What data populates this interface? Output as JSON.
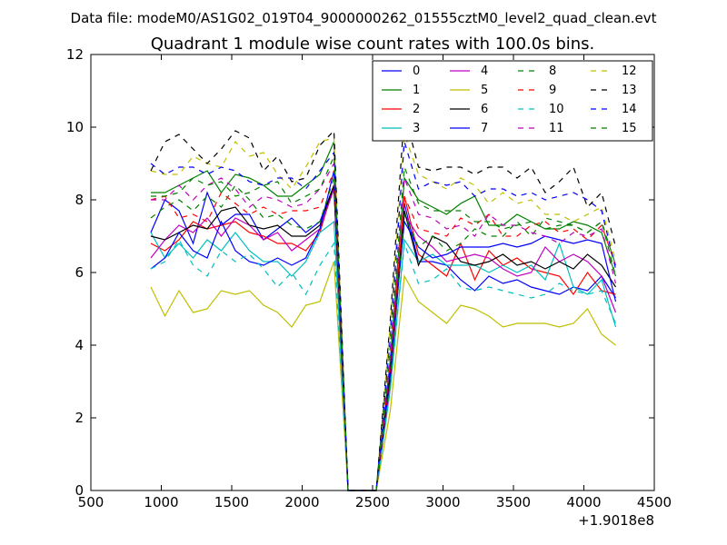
{
  "chart_data": {
    "type": "line",
    "suptitle": "Data file: modeM0/AS1G02_019T04_9000000262_01555cztM0_level2_quad_clean.evt",
    "title": "Quadrant 1 module wise count rates with 100.0s bins.",
    "xlabel": "",
    "ylabel": "",
    "x_offset_label": "+1.9018e8",
    "xlim": [
      500,
      4500
    ],
    "ylim": [
      0,
      12
    ],
    "xticks": [
      500,
      1000,
      1500,
      2000,
      2500,
      3000,
      3500,
      4000,
      4500
    ],
    "yticks": [
      0,
      2,
      4,
      6,
      8,
      10,
      12
    ],
    "grid": false,
    "legend_position": "top-right",
    "x": [
      926,
      1026,
      1126,
      1226,
      1326,
      1426,
      1526,
      1626,
      1726,
      1826,
      1926,
      2026,
      2126,
      2226,
      2326,
      2426,
      2526,
      2626,
      2726,
      2826,
      2926,
      3026,
      3126,
      3226,
      3326,
      3426,
      3526,
      3626,
      3726,
      3826,
      3926,
      4026,
      4126,
      4226
    ],
    "series": [
      {
        "name": "0",
        "color": "#0000ff",
        "dash": false,
        "values": [
          7.1,
          8.0,
          7.7,
          6.8,
          8.2,
          7.3,
          7.6,
          7.6,
          6.9,
          7.2,
          7.5,
          7.1,
          7.4,
          8.4,
          0,
          0,
          0,
          3.2,
          7.9,
          6.3,
          6.3,
          6.2,
          5.8,
          5.5,
          5.9,
          5.7,
          5.8,
          5.6,
          5.5,
          5.4,
          5.6,
          5.5,
          5.9,
          5.3
        ]
      },
      {
        "name": "1",
        "color": "#008000",
        "dash": false,
        "values": [
          8.2,
          8.2,
          8.4,
          8.6,
          8.8,
          8.2,
          8.7,
          8.6,
          8.4,
          8.1,
          8.1,
          8.4,
          8.7,
          9.6,
          0,
          0,
          0,
          3.6,
          8.6,
          8.0,
          7.8,
          7.6,
          7.9,
          8.1,
          7.3,
          7.3,
          7.6,
          7.4,
          7.2,
          7.2,
          7.4,
          7.3,
          7.1,
          5.9
        ]
      },
      {
        "name": "2",
        "color": "#ff0000",
        "dash": false,
        "values": [
          6.8,
          6.6,
          6.9,
          7.4,
          7.2,
          7.3,
          7.4,
          7.1,
          7.0,
          6.8,
          6.8,
          6.6,
          7.1,
          8.4,
          0,
          0,
          0,
          3.3,
          8.1,
          6.5,
          6.2,
          5.9,
          6.8,
          5.8,
          6.6,
          6.2,
          6.4,
          6.1,
          6.0,
          5.9,
          5.4,
          6.0,
          5.5,
          5.4
        ]
      },
      {
        "name": "3",
        "color": "#00bfbf",
        "dash": false,
        "values": [
          7.1,
          6.4,
          6.8,
          6.4,
          6.9,
          6.6,
          7.1,
          6.6,
          6.3,
          6.3,
          5.9,
          6.3,
          7.1,
          7.4,
          0,
          0,
          0,
          2.8,
          6.9,
          6.3,
          6.5,
          6.2,
          6.2,
          6.2,
          6.0,
          6.2,
          6.0,
          6.2,
          5.8,
          6.8,
          5.6,
          5.4,
          5.8,
          4.5
        ]
      },
      {
        "name": "4",
        "color": "#bf00bf",
        "dash": false,
        "values": [
          6.4,
          6.9,
          7.3,
          7.1,
          7.5,
          7.0,
          7.5,
          7.3,
          6.9,
          7.1,
          6.6,
          6.9,
          7.2,
          8.3,
          0,
          0,
          0,
          3.0,
          7.6,
          7.0,
          6.7,
          6.3,
          6.4,
          6.5,
          6.4,
          6.1,
          5.9,
          6.0,
          6.7,
          6.3,
          6.5,
          6.3,
          5.9,
          4.9
        ]
      },
      {
        "name": "5",
        "color": "#bfbf00",
        "dash": false,
        "values": [
          5.6,
          4.8,
          5.5,
          4.9,
          5.0,
          5.5,
          5.4,
          5.5,
          5.1,
          4.9,
          4.5,
          5.1,
          5.2,
          6.3,
          0,
          0,
          0,
          2.2,
          5.9,
          5.2,
          4.9,
          4.6,
          5.1,
          5.0,
          4.8,
          4.5,
          4.6,
          4.6,
          4.6,
          4.5,
          4.6,
          5.0,
          4.3,
          4.0
        ]
      },
      {
        "name": "6",
        "color": "#000000",
        "dash": false,
        "values": [
          7.0,
          6.9,
          7.1,
          7.3,
          7.2,
          7.7,
          7.8,
          7.3,
          7.2,
          7.3,
          7.0,
          7.0,
          7.3,
          8.4,
          0,
          0,
          0,
          3.2,
          7.7,
          6.2,
          7.0,
          6.8,
          6.3,
          6.2,
          6.3,
          6.5,
          6.2,
          6.3,
          6.1,
          6.3,
          6.1,
          6.5,
          6.2,
          5.6
        ]
      },
      {
        "name": "7",
        "color": "#0000ff",
        "dash": false,
        "values": [
          6.1,
          6.4,
          7.1,
          6.6,
          6.4,
          7.4,
          6.6,
          6.3,
          6.2,
          6.4,
          6.2,
          6.4,
          7.2,
          8.8,
          0,
          0,
          0,
          3.4,
          7.4,
          6.7,
          6.4,
          6.5,
          6.7,
          6.7,
          6.7,
          6.8,
          6.7,
          6.8,
          7.0,
          6.9,
          6.8,
          6.9,
          6.8,
          5.2
        ]
      },
      {
        "name": "8",
        "color": "#008000",
        "dash": true,
        "values": [
          7.5,
          7.8,
          8.0,
          7.7,
          8.1,
          7.8,
          8.4,
          8.0,
          7.5,
          7.6,
          7.3,
          7.2,
          7.4,
          8.6,
          0,
          0,
          0,
          3.0,
          7.6,
          6.7,
          7.0,
          6.6,
          6.8,
          7.2,
          7.0,
          7.0,
          7.4,
          7.0,
          7.5,
          7.4,
          7.3,
          7.1,
          7.4,
          6.2
        ]
      },
      {
        "name": "9",
        "color": "#ff0000",
        "dash": true,
        "values": [
          8.0,
          8.1,
          7.5,
          7.6,
          7.4,
          8.2,
          7.9,
          7.6,
          7.8,
          7.6,
          7.7,
          7.7,
          7.8,
          8.8,
          0,
          0,
          0,
          3.5,
          8.1,
          7.2,
          7.1,
          7.0,
          7.5,
          7.3,
          7.6,
          7.0,
          7.0,
          7.3,
          7.4,
          7.1,
          7.2,
          6.9,
          7.3,
          6.2
        ]
      },
      {
        "name": "10",
        "color": "#00bfbf",
        "dash": true,
        "values": [
          6.1,
          6.3,
          6.9,
          6.2,
          5.9,
          6.6,
          6.3,
          6.5,
          6.1,
          5.6,
          6.0,
          5.4,
          6.2,
          6.8,
          0,
          0,
          0,
          2.8,
          6.8,
          5.7,
          5.8,
          6.1,
          5.6,
          5.5,
          5.6,
          5.5,
          5.4,
          5.3,
          5.4,
          5.7,
          5.5,
          5.4,
          5.5,
          4.6
        ]
      },
      {
        "name": "11",
        "color": "#bf00bf",
        "dash": true,
        "values": [
          8.0,
          8.0,
          8.4,
          8.0,
          8.4,
          8.6,
          8.3,
          7.8,
          8.1,
          8.0,
          7.8,
          7.9,
          8.3,
          9.0,
          0,
          0,
          0,
          3.7,
          8.6,
          7.6,
          7.5,
          7.2,
          7.3,
          7.0,
          7.6,
          7.3,
          7.3,
          7.1,
          7.0,
          6.8,
          7.1,
          7.0,
          7.2,
          5.7
        ]
      },
      {
        "name": "12",
        "color": "#bfbf00",
        "dash": true,
        "values": [
          8.8,
          8.7,
          8.7,
          9.2,
          9.0,
          8.9,
          9.6,
          9.2,
          9.3,
          8.7,
          8.3,
          8.9,
          9.6,
          9.7,
          0,
          0,
          0,
          4.6,
          9.8,
          8.7,
          8.5,
          8.3,
          8.6,
          8.4,
          7.9,
          8.2,
          7.9,
          8.0,
          7.6,
          7.6,
          7.4,
          7.6,
          7.8,
          6.3
        ]
      },
      {
        "name": "13",
        "color": "#000000",
        "dash": true,
        "values": [
          8.8,
          9.6,
          9.8,
          9.4,
          9.0,
          9.4,
          9.9,
          9.7,
          8.8,
          9.2,
          8.5,
          8.6,
          9.5,
          9.9,
          0,
          0,
          0,
          4.7,
          10.4,
          8.9,
          8.8,
          8.9,
          8.9,
          8.7,
          8.9,
          8.9,
          8.6,
          8.9,
          8.2,
          8.5,
          8.9,
          7.8,
          8.2,
          6.7
        ]
      },
      {
        "name": "14",
        "color": "#0000ff",
        "dash": true,
        "values": [
          9.0,
          8.7,
          8.9,
          8.9,
          8.7,
          8.9,
          8.8,
          8.5,
          8.4,
          8.6,
          8.6,
          8.3,
          8.8,
          9.3,
          0,
          0,
          0,
          4.2,
          9.6,
          8.3,
          8.5,
          8.4,
          8.5,
          8.1,
          8.3,
          8.3,
          8.1,
          8.2,
          8.0,
          8.1,
          8.2,
          8.0,
          7.7,
          6.1
        ]
      },
      {
        "name": "15",
        "color": "#008000",
        "dash": true,
        "values": [
          8.1,
          8.1,
          8.2,
          8.6,
          8.4,
          8.5,
          8.1,
          8.2,
          8.4,
          8.5,
          7.9,
          8.1,
          8.3,
          9.2,
          0,
          0,
          0,
          4.0,
          8.9,
          7.9,
          7.7,
          7.7,
          7.7,
          7.4,
          7.4,
          7.2,
          7.3,
          7.4,
          7.2,
          7.3,
          7.3,
          7.1,
          7.4,
          5.9
        ]
      }
    ]
  }
}
